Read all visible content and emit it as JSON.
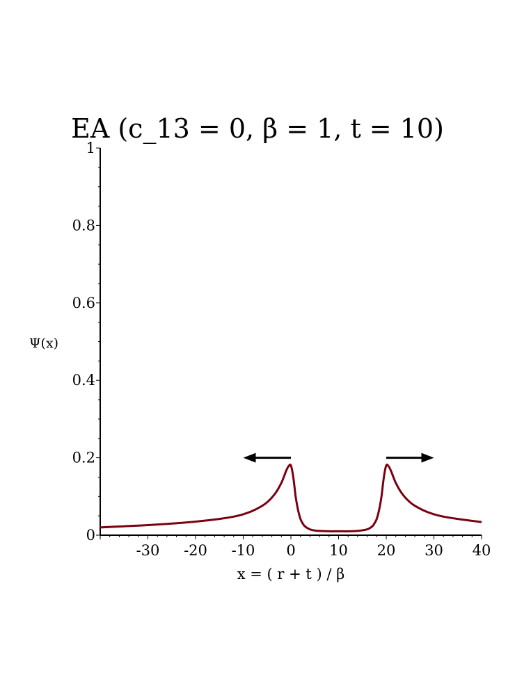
{
  "chart_data": {
    "type": "line",
    "title": "EA  (c_13 = 0,  β  = 1,  t = 10)",
    "xlabel": "x = ( r + t ) / β",
    "ylabel": "Ψ(x)",
    "xlim": [
      -40,
      40
    ],
    "ylim": [
      0,
      1
    ],
    "xticks": [
      -30,
      -20,
      -10,
      0,
      10,
      20,
      30,
      40
    ],
    "xtick_labels": [
      "-30",
      "-20",
      "-10",
      "0",
      "10",
      "20",
      "30",
      "40"
    ],
    "yticks": [
      0,
      0.2,
      0.4,
      0.6,
      0.8,
      1
    ],
    "ytick_labels": [
      "0",
      "0.2",
      "0.4",
      "0.6",
      "0.8",
      "1"
    ],
    "grid": false,
    "line_color": "#7a0010",
    "series": [
      {
        "x": [
          -40,
          -35,
          -30,
          -25,
          -20,
          -15,
          -12,
          -10,
          -8,
          -6,
          -5,
          -4,
          -3,
          -2,
          -1.5,
          -1,
          -0.5,
          0,
          0.5,
          1,
          1.5,
          2,
          2.5,
          3,
          4,
          5,
          6,
          8,
          10,
          12,
          14,
          16,
          17,
          17.5,
          18,
          18.5,
          19,
          19.5,
          20,
          20.5,
          21,
          21.5,
          22,
          23,
          24,
          25,
          26,
          28,
          30,
          32,
          35,
          38,
          40
        ],
        "y": [
          0.02,
          0.023,
          0.026,
          0.03,
          0.035,
          0.042,
          0.048,
          0.054,
          0.063,
          0.076,
          0.085,
          0.097,
          0.113,
          0.135,
          0.15,
          0.166,
          0.178,
          0.18,
          0.15,
          0.1,
          0.065,
          0.042,
          0.03,
          0.022,
          0.015,
          0.012,
          0.011,
          0.01,
          0.01,
          0.01,
          0.011,
          0.015,
          0.022,
          0.03,
          0.042,
          0.065,
          0.1,
          0.15,
          0.18,
          0.178,
          0.166,
          0.15,
          0.135,
          0.113,
          0.097,
          0.085,
          0.076,
          0.063,
          0.054,
          0.048,
          0.042,
          0.037,
          0.034
        ]
      }
    ],
    "annotations": [
      {
        "type": "arrow",
        "direction": "left",
        "x_from": 0,
        "x_to": -10,
        "y": 0.2
      },
      {
        "type": "arrow",
        "direction": "right",
        "x_from": 20,
        "x_to": 30,
        "y": 0.2
      }
    ]
  }
}
